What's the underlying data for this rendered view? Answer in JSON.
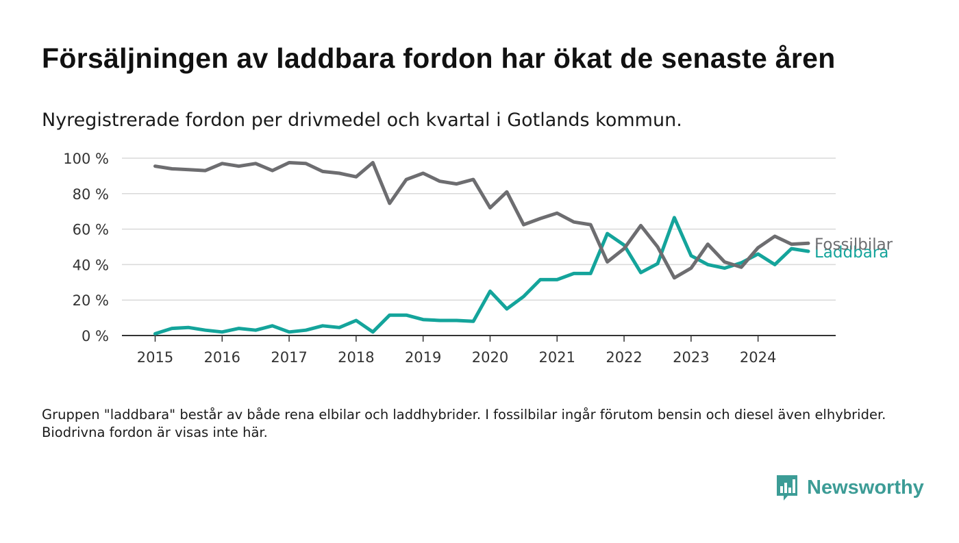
{
  "title": "Försäljningen av laddbara fordon har ökat de senaste åren",
  "subtitle": "Nyregistrerade fordon per drivmedel och kvartal i Gotlands kommun.",
  "footnote": "Gruppen \"laddbara\" består av både rena elbilar och laddhybrider. I fossilbilar ingår förutom bensin och diesel även elhybrider. Biodrivna fordon är visas inte här.",
  "brand": {
    "name": "Newsworthy",
    "icon": "newsworthy-logo-icon",
    "color": "#3c9c96"
  },
  "chart_data": {
    "type": "line",
    "xlabel": "",
    "ylabel": "",
    "ylim": [
      0,
      100
    ],
    "xlim": [
      2015,
      2025.2
    ],
    "yticks": [
      {
        "value": 0,
        "label": "0 %"
      },
      {
        "value": 20,
        "label": "20 %"
      },
      {
        "value": 40,
        "label": "40 %"
      },
      {
        "value": 60,
        "label": "60 %"
      },
      {
        "value": 80,
        "label": "80 %"
      },
      {
        "value": 100,
        "label": "100 %"
      }
    ],
    "xticks": [
      {
        "value": 2015,
        "label": "2015"
      },
      {
        "value": 2016,
        "label": "2016"
      },
      {
        "value": 2017,
        "label": "2017"
      },
      {
        "value": 2018,
        "label": "2018"
      },
      {
        "value": 2019,
        "label": "2019"
      },
      {
        "value": 2020,
        "label": "2020"
      },
      {
        "value": 2021,
        "label": "2021"
      },
      {
        "value": 2022,
        "label": "2022"
      },
      {
        "value": 2023,
        "label": "2023"
      },
      {
        "value": 2024,
        "label": "2024"
      }
    ],
    "grid": true,
    "legend": "inline labels at line ends",
    "x": [
      2015,
      2015.25,
      2015.5,
      2015.75,
      2016,
      2016.25,
      2016.5,
      2016.75,
      2017,
      2017.25,
      2017.5,
      2017.75,
      2018,
      2018.25,
      2018.5,
      2018.75,
      2019,
      2019.25,
      2019.5,
      2019.75,
      2020,
      2020.25,
      2020.5,
      2020.75,
      2021,
      2021.25,
      2021.5,
      2021.75,
      2022,
      2022.25,
      2022.5,
      2022.75,
      2023,
      2023.25,
      2023.5,
      2023.75,
      2024,
      2024.25,
      2024.5,
      2024.75
    ],
    "series": [
      {
        "name": "Fossilbilar",
        "color": "#6d6d70",
        "values": [
          95.5,
          94,
          93.5,
          93,
          97,
          95.5,
          97,
          93,
          97.5,
          97,
          92.5,
          91.5,
          89.5,
          97.5,
          74.5,
          88,
          91.5,
          87,
          85.5,
          88,
          72,
          81,
          62.5,
          66,
          69,
          64,
          62.5,
          41.5,
          49,
          62,
          50,
          32.5,
          38,
          51.5,
          41.5,
          38.5,
          49.5,
          56,
          51.5,
          52
        ]
      },
      {
        "name": "Laddbara",
        "color": "#14a49b",
        "values": [
          1,
          4,
          4.5,
          3,
          2,
          4,
          3,
          5.5,
          2,
          3,
          5.5,
          4.5,
          8.5,
          2,
          11.5,
          11.5,
          9,
          8.5,
          8.5,
          8,
          25,
          15,
          22,
          31.5,
          31.5,
          35,
          35,
          57.5,
          51,
          35.5,
          40.5,
          66.5,
          45,
          40,
          38,
          41,
          46,
          40,
          49,
          47.5
        ]
      }
    ]
  }
}
